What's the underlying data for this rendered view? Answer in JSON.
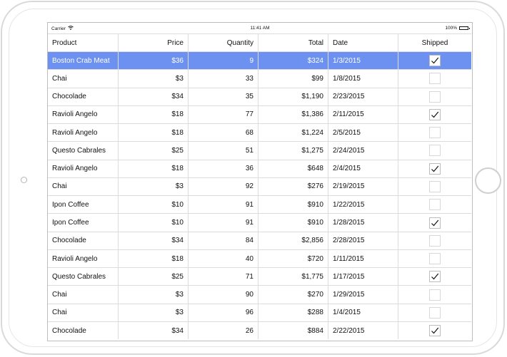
{
  "status_bar": {
    "carrier": "Carrier",
    "time": "11:41 AM",
    "battery": "100%"
  },
  "grid": {
    "columns": [
      "Product",
      "Price",
      "Quantity",
      "Total",
      "Date",
      "Shipped"
    ],
    "selected_row": 0,
    "rows": [
      {
        "product": "Boston Crab Meat",
        "price": "$36",
        "quantity": "9",
        "total": "$324",
        "date": "1/3/2015",
        "shipped": true
      },
      {
        "product": "Chai",
        "price": "$3",
        "quantity": "33",
        "total": "$99",
        "date": "1/8/2015",
        "shipped": false
      },
      {
        "product": "Chocolade",
        "price": "$34",
        "quantity": "35",
        "total": "$1,190",
        "date": "2/23/2015",
        "shipped": false
      },
      {
        "product": "Ravioli Angelo",
        "price": "$18",
        "quantity": "77",
        "total": "$1,386",
        "date": "2/11/2015",
        "shipped": true
      },
      {
        "product": "Ravioli Angelo",
        "price": "$18",
        "quantity": "68",
        "total": "$1,224",
        "date": "2/5/2015",
        "shipped": false
      },
      {
        "product": "Questo Cabrales",
        "price": "$25",
        "quantity": "51",
        "total": "$1,275",
        "date": "2/24/2015",
        "shipped": false
      },
      {
        "product": "Ravioli Angelo",
        "price": "$18",
        "quantity": "36",
        "total": "$648",
        "date": "2/4/2015",
        "shipped": true
      },
      {
        "product": "Chai",
        "price": "$3",
        "quantity": "92",
        "total": "$276",
        "date": "2/19/2015",
        "shipped": false
      },
      {
        "product": "Ipon Coffee",
        "price": "$10",
        "quantity": "91",
        "total": "$910",
        "date": "1/22/2015",
        "shipped": false
      },
      {
        "product": "Ipon Coffee",
        "price": "$10",
        "quantity": "91",
        "total": "$910",
        "date": "1/28/2015",
        "shipped": true
      },
      {
        "product": "Chocolade",
        "price": "$34",
        "quantity": "84",
        "total": "$2,856",
        "date": "2/28/2015",
        "shipped": false
      },
      {
        "product": "Ravioli Angelo",
        "price": "$18",
        "quantity": "40",
        "total": "$720",
        "date": "1/11/2015",
        "shipped": false
      },
      {
        "product": "Questo Cabrales",
        "price": "$25",
        "quantity": "71",
        "total": "$1,775",
        "date": "1/17/2015",
        "shipped": true
      },
      {
        "product": "Chai",
        "price": "$3",
        "quantity": "90",
        "total": "$270",
        "date": "1/29/2015",
        "shipped": false
      },
      {
        "product": "Chai",
        "price": "$3",
        "quantity": "96",
        "total": "$288",
        "date": "1/4/2015",
        "shipped": false
      },
      {
        "product": "Chocolade",
        "price": "$34",
        "quantity": "26",
        "total": "$884",
        "date": "2/22/2015",
        "shipped": true
      }
    ]
  },
  "colors": {
    "selection": "#6c91f1",
    "grid_line": "#dcdcdc"
  }
}
